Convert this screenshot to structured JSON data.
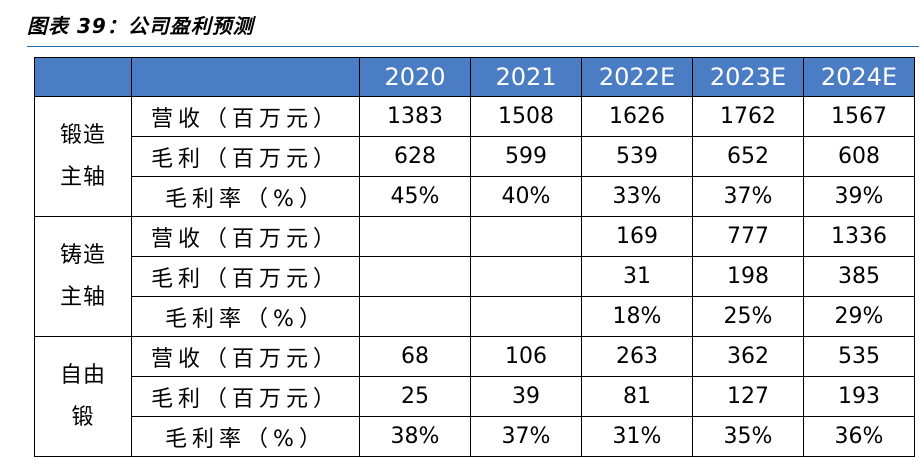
{
  "caption": "图表 39：公司盈利预测",
  "table": {
    "header": [
      "2020",
      "2021",
      "2022E",
      "2023E",
      "2024E"
    ],
    "segments": [
      {
        "name_lines": [
          "锻造",
          "主轴"
        ],
        "rows": [
          {
            "metric": "营收（百万元）",
            "values": [
              "1383",
              "1508",
              "1626",
              "1762",
              "1567"
            ]
          },
          {
            "metric": "毛利（百万元）",
            "values": [
              "628",
              "599",
              "539",
              "652",
              "608"
            ]
          },
          {
            "metric": "毛利率（%）",
            "values": [
              "45%",
              "40%",
              "33%",
              "37%",
              "39%"
            ]
          }
        ]
      },
      {
        "name_lines": [
          "铸造",
          "主轴"
        ],
        "rows": [
          {
            "metric": "营收（百万元）",
            "values": [
              "",
              "",
              "169",
              "777",
              "1336"
            ]
          },
          {
            "metric": "毛利（百万元）",
            "values": [
              "",
              "",
              "31",
              "198",
              "385"
            ]
          },
          {
            "metric": "毛利率（%）",
            "values": [
              "",
              "",
              "18%",
              "25%",
              "29%"
            ]
          }
        ]
      },
      {
        "name_lines": [
          "自由",
          "锻"
        ],
        "rows": [
          {
            "metric": "营收（百万元）",
            "values": [
              "68",
              "106",
              "263",
              "362",
              "535"
            ]
          },
          {
            "metric": "毛利（百万元）",
            "values": [
              "25",
              "39",
              "81",
              "127",
              "193"
            ]
          },
          {
            "metric": "毛利率（%）",
            "values": [
              "38%",
              "37%",
              "31%",
              "35%",
              "36%"
            ]
          }
        ]
      }
    ]
  },
  "colors": {
    "header_bg": "#4a7dc4",
    "header_text": "#ffffff",
    "caption_rule": "#1f6fb2"
  }
}
